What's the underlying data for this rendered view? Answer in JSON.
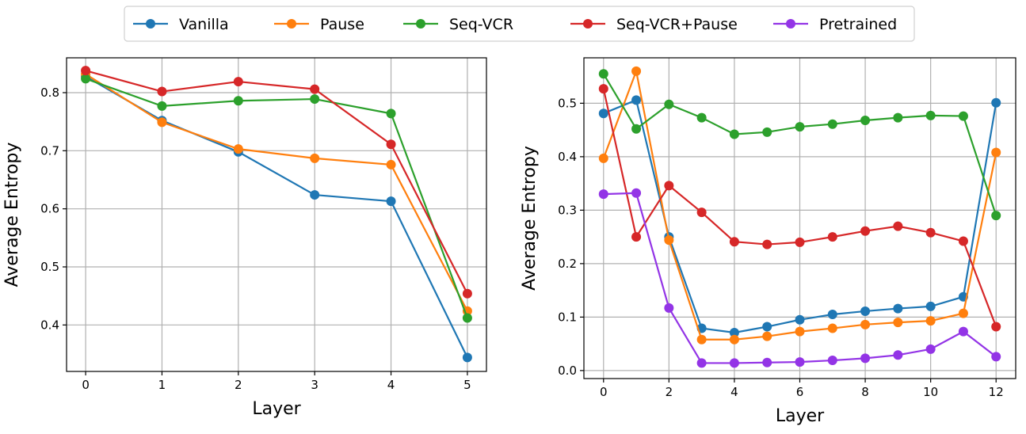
{
  "legend": [
    {
      "name": "Vanilla",
      "color": "#1f77b4"
    },
    {
      "name": "Pause",
      "color": "#ff7f0e"
    },
    {
      "name": "Seq-VCR",
      "color": "#2ca02c"
    },
    {
      "name": "Seq-VCR+Pause",
      "color": "#d62728"
    },
    {
      "name": "Pretrained",
      "color": "#9334e6"
    }
  ],
  "chart_data": [
    {
      "type": "line",
      "xlabel": "Layer",
      "ylabel": "Average Entropy",
      "xlim": [
        -0.25,
        5.25
      ],
      "ylim": [
        0.32,
        0.86
      ],
      "grid": true,
      "xticks": [
        0,
        1,
        2,
        3,
        4,
        5
      ],
      "yticks": [
        0.4,
        0.5,
        0.6,
        0.7,
        0.8
      ],
      "x": [
        0,
        1,
        2,
        3,
        4,
        5
      ],
      "series": [
        {
          "name": "Vanilla",
          "color": "#1f77b4",
          "values": [
            0.828,
            0.752,
            0.698,
            0.624,
            0.613,
            0.344
          ]
        },
        {
          "name": "Pause",
          "color": "#ff7f0e",
          "values": [
            0.832,
            0.749,
            0.703,
            0.687,
            0.676,
            0.424
          ]
        },
        {
          "name": "Seq-VCR",
          "color": "#2ca02c",
          "values": [
            0.824,
            0.777,
            0.786,
            0.789,
            0.764,
            0.412
          ]
        },
        {
          "name": "Seq-VCR+Pause",
          "color": "#d62728",
          "values": [
            0.838,
            0.802,
            0.819,
            0.806,
            0.711,
            0.454
          ]
        }
      ]
    },
    {
      "type": "line",
      "xlabel": "Layer",
      "ylabel": "Average Entropy",
      "xlim": [
        -0.6,
        12.6
      ],
      "ylim": [
        -0.015,
        0.585
      ],
      "grid": true,
      "xticks": [
        0,
        2,
        4,
        6,
        8,
        10,
        12
      ],
      "yticks": [
        0.0,
        0.1,
        0.2,
        0.3,
        0.4,
        0.5
      ],
      "ytick_labels": [
        "0.0",
        "0.1",
        "0.2",
        "0.3",
        "0.4",
        "0.5"
      ],
      "x": [
        0,
        1,
        2,
        3,
        4,
        5,
        6,
        7,
        8,
        9,
        10,
        11,
        12
      ],
      "series": [
        {
          "name": "Vanilla",
          "color": "#1f77b4",
          "values": [
            0.481,
            0.506,
            0.25,
            0.079,
            0.071,
            0.082,
            0.095,
            0.105,
            0.111,
            0.116,
            0.12,
            0.138,
            0.501
          ]
        },
        {
          "name": "Pause",
          "color": "#ff7f0e",
          "values": [
            0.397,
            0.56,
            0.244,
            0.058,
            0.058,
            0.064,
            0.073,
            0.079,
            0.086,
            0.09,
            0.093,
            0.107,
            0.408
          ]
        },
        {
          "name": "Seq-VCR",
          "color": "#2ca02c",
          "values": [
            0.555,
            0.452,
            0.498,
            0.473,
            0.442,
            0.446,
            0.456,
            0.461,
            0.468,
            0.473,
            0.477,
            0.476,
            0.29
          ]
        },
        {
          "name": "Seq-VCR+Pause",
          "color": "#d62728",
          "values": [
            0.527,
            0.25,
            0.346,
            0.296,
            0.241,
            0.236,
            0.24,
            0.25,
            0.261,
            0.27,
            0.258,
            0.242,
            0.082
          ]
        },
        {
          "name": "Pretrained",
          "color": "#9334e6",
          "values": [
            0.33,
            0.332,
            0.117,
            0.014,
            0.014,
            0.015,
            0.016,
            0.019,
            0.023,
            0.029,
            0.04,
            0.073,
            0.026
          ]
        }
      ]
    }
  ]
}
